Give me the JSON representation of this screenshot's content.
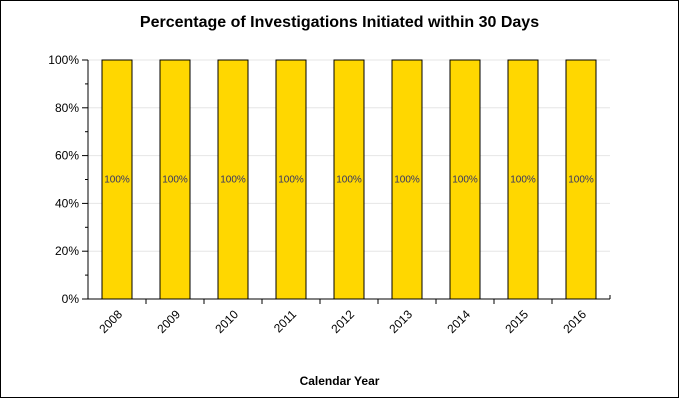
{
  "chart_data": {
    "type": "bar",
    "title": "Percentage of Investigations Initiated within 30 Days",
    "xlabel": "Calendar Year",
    "ylabel": "",
    "categories": [
      "2008",
      "2009",
      "2010",
      "2011",
      "2012",
      "2013",
      "2014",
      "2015",
      "2016"
    ],
    "values": [
      100,
      100,
      100,
      100,
      100,
      100,
      100,
      100,
      100
    ],
    "data_labels": [
      "100%",
      "100%",
      "100%",
      "100%",
      "100%",
      "100%",
      "100%",
      "100%",
      "100%"
    ],
    "ylim": [
      0,
      100
    ],
    "yticks": [
      "0%",
      "20%",
      "40%",
      "60%",
      "80%",
      "100%"
    ],
    "grid": true,
    "legend": "none",
    "colors": {
      "bar_fill": "#FFD700",
      "bar_stroke": "#000000",
      "grid": "#E6E6E6",
      "axis": "#000000",
      "data_label": "#333366"
    }
  }
}
